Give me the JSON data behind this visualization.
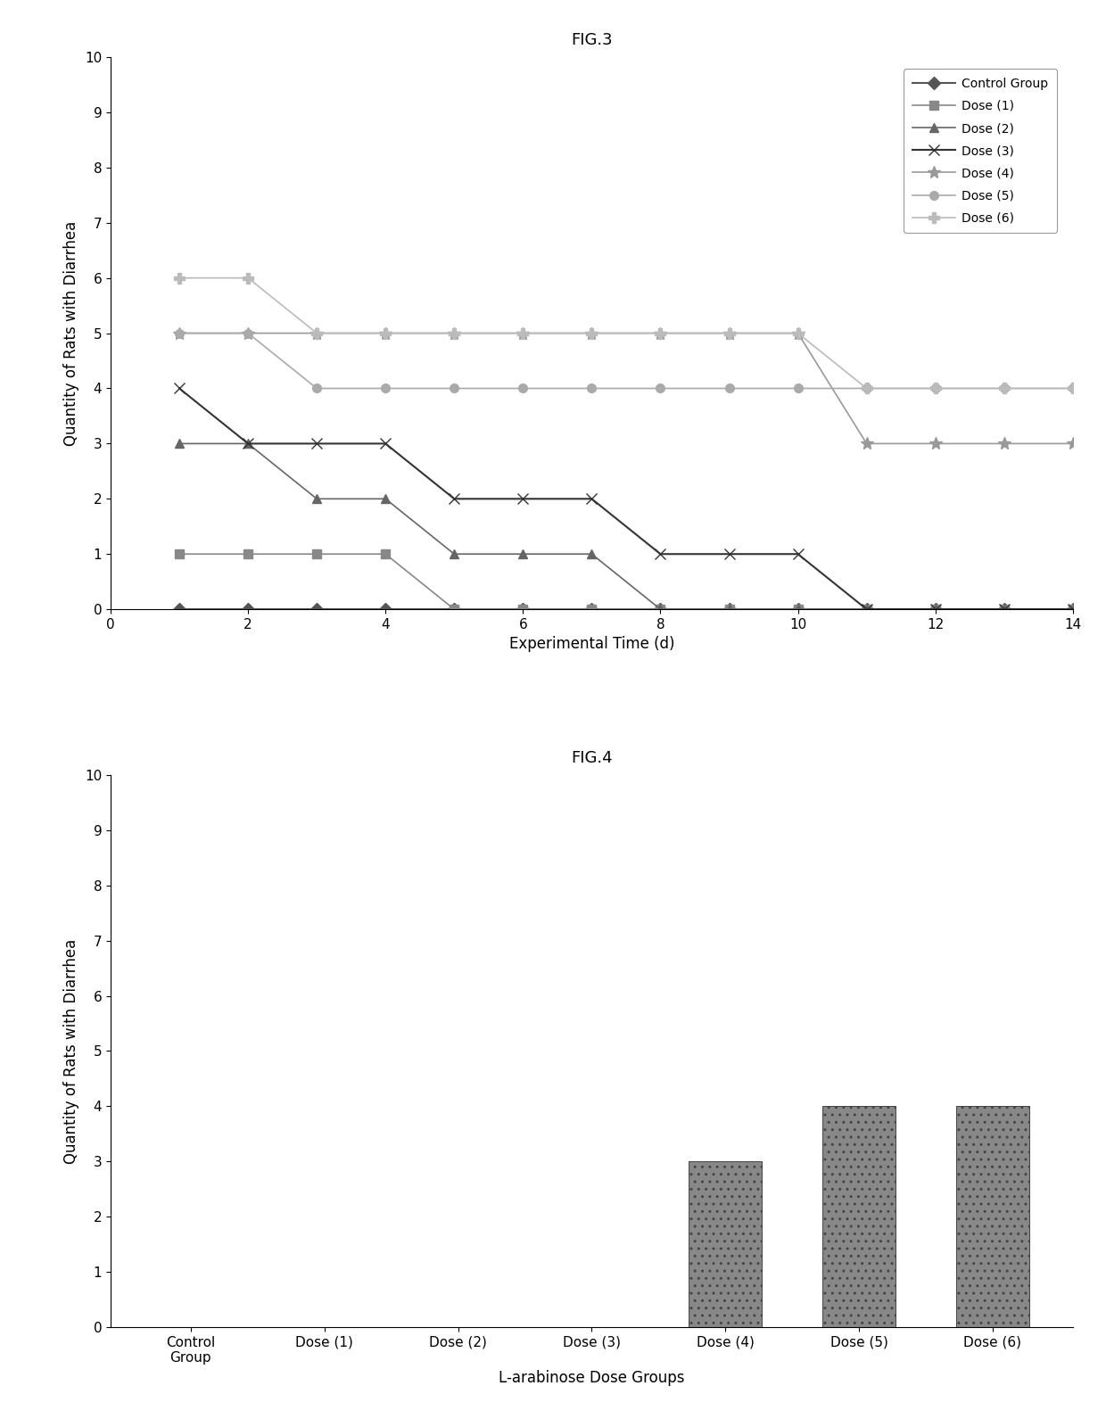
{
  "fig3_title": "FIG.3",
  "fig4_title": "FIG.4",
  "xlabel_fig3": "Experimental Time (d)",
  "ylabel": "Quantity of Rats with Diarrhea",
  "xlabel_fig4": "L-arabinose Dose Groups",
  "xlim_fig3": [
    0,
    14
  ],
  "ylim_fig3": [
    0,
    10
  ],
  "ylim_fig4": [
    0,
    10
  ],
  "xticks_fig3": [
    0,
    2,
    4,
    6,
    8,
    10,
    12,
    14
  ],
  "yticks": [
    0,
    1,
    2,
    3,
    4,
    5,
    6,
    7,
    8,
    9,
    10
  ],
  "series": [
    {
      "label": "Control Group",
      "color": "#555555",
      "marker": "D",
      "markersize": 7,
      "linewidth": 1.5,
      "x": [
        1,
        2,
        3,
        4,
        5,
        6,
        7,
        8,
        9,
        10,
        11,
        12,
        13,
        14
      ],
      "y": [
        0,
        0,
        0,
        0,
        0,
        0,
        0,
        0,
        0,
        0,
        0,
        0,
        0,
        0
      ]
    },
    {
      "label": "Dose (1)",
      "color": "#888888",
      "marker": "s",
      "markersize": 7,
      "linewidth": 1.2,
      "x": [
        1,
        2,
        3,
        4,
        5,
        6,
        7,
        8,
        9,
        10,
        11,
        12,
        13,
        14
      ],
      "y": [
        1,
        1,
        1,
        1,
        0,
        0,
        0,
        0,
        0,
        0,
        0,
        0,
        0,
        0
      ]
    },
    {
      "label": "Dose (2)",
      "color": "#666666",
      "marker": "^",
      "markersize": 7,
      "linewidth": 1.2,
      "x": [
        1,
        2,
        3,
        4,
        5,
        6,
        7,
        8,
        9,
        10,
        11,
        12,
        13,
        14
      ],
      "y": [
        3,
        3,
        2,
        2,
        1,
        1,
        1,
        0,
        0,
        0,
        0,
        0,
        0,
        0
      ]
    },
    {
      "label": "Dose (3)",
      "color": "#333333",
      "marker": "x",
      "markersize": 9,
      "linewidth": 1.5,
      "x": [
        1,
        2,
        3,
        4,
        5,
        6,
        7,
        8,
        9,
        10,
        11,
        12,
        13,
        14
      ],
      "y": [
        4,
        3,
        3,
        3,
        2,
        2,
        2,
        1,
        1,
        1,
        0,
        0,
        0,
        0
      ]
    },
    {
      "label": "Dose (4)",
      "color": "#999999",
      "marker": "*",
      "markersize": 10,
      "linewidth": 1.2,
      "x": [
        1,
        2,
        3,
        4,
        5,
        6,
        7,
        8,
        9,
        10,
        11,
        12,
        13,
        14
      ],
      "y": [
        5,
        5,
        5,
        5,
        5,
        5,
        5,
        5,
        5,
        5,
        3,
        3,
        3,
        3
      ]
    },
    {
      "label": "Dose (5)",
      "color": "#aaaaaa",
      "marker": "o",
      "markersize": 7,
      "linewidth": 1.2,
      "x": [
        1,
        2,
        3,
        4,
        5,
        6,
        7,
        8,
        9,
        10,
        11,
        12,
        13,
        14
      ],
      "y": [
        5,
        5,
        4,
        4,
        4,
        4,
        4,
        4,
        4,
        4,
        4,
        4,
        4,
        4
      ]
    },
    {
      "label": "Dose (6)",
      "color": "#bbbbbb",
      "marker": "P",
      "markersize": 8,
      "linewidth": 1.2,
      "x": [
        1,
        2,
        3,
        4,
        5,
        6,
        7,
        8,
        9,
        10,
        11,
        12,
        13,
        14
      ],
      "y": [
        6,
        6,
        5,
        5,
        5,
        5,
        5,
        5,
        5,
        5,
        4,
        4,
        4,
        4
      ]
    }
  ],
  "bar_categories": [
    "Control\nGroup",
    "Dose (1)",
    "Dose (2)",
    "Dose (3)",
    "Dose (4)",
    "Dose (5)",
    "Dose (6)"
  ],
  "bar_values": [
    0,
    0,
    0,
    0,
    3,
    4,
    4
  ],
  "bar_color": "#888888",
  "bar_hatch": ".."
}
